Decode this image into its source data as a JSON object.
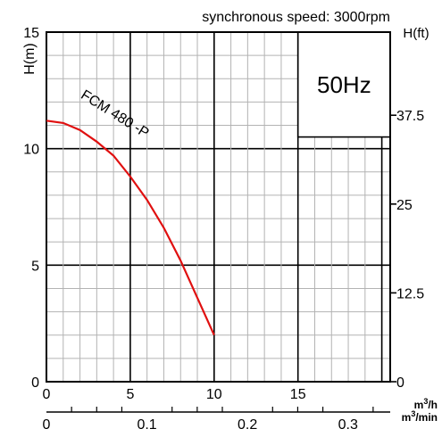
{
  "chart_data": {
    "type": "line",
    "title": "synchronous speed: 3000rpm",
    "frequency_label": "50Hz",
    "frequency_color": "#1f5fb5",
    "curve_color": "#e01010",
    "grid": true,
    "y_left": {
      "label": "H(m)",
      "range": [
        0,
        15
      ],
      "ticks": [
        "0",
        "5",
        "10",
        "15"
      ]
    },
    "y_right": {
      "label": "H(ft)",
      "range": [
        0,
        49.2
      ],
      "ticks": [
        "0",
        "12.5",
        "25",
        "37.5"
      ]
    },
    "x_top": {
      "unit": "m³/h",
      "range": [
        0,
        20.5
      ],
      "ticks": [
        "0",
        "5",
        "10",
        "15"
      ]
    },
    "x_bottom": {
      "unit": "m³/min",
      "range": [
        0,
        0.342
      ],
      "ticks": [
        "0",
        "0.1",
        "0.2",
        "0.3"
      ]
    },
    "series": [
      {
        "name": "FCM 480 -P",
        "x": [
          0,
          1,
          2,
          3,
          4,
          5,
          6,
          7,
          8,
          9,
          10
        ],
        "y": [
          11.2,
          11.1,
          10.8,
          10.3,
          9.7,
          8.8,
          7.8,
          6.6,
          5.2,
          3.6,
          2.0
        ]
      }
    ]
  }
}
